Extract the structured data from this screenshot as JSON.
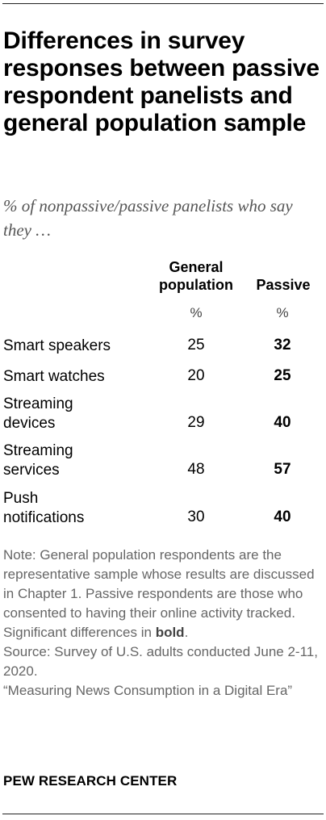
{
  "title": "Differences in survey responses between passive respondent panelists and general population sample",
  "subtitle": "% of nonpassive/passive panelists who say they …",
  "columns": [
    {
      "header_line1": "General",
      "header_line2": "population",
      "unit": "%"
    },
    {
      "header_line1": "",
      "header_line2": "Passive",
      "unit": "%"
    }
  ],
  "chart_data": {
    "type": "table",
    "title": "Differences in survey responses between passive respondent panelists and general population sample",
    "subtitle": "% of nonpassive/passive panelists who say they …",
    "columns": [
      "General population",
      "Passive"
    ],
    "rows": [
      {
        "label_lines": [
          "Smart speakers"
        ],
        "values": [
          "25",
          "32"
        ],
        "bold": [
          false,
          true
        ]
      },
      {
        "label_lines": [
          "Smart watches"
        ],
        "values": [
          "20",
          "25"
        ],
        "bold": [
          false,
          true
        ]
      },
      {
        "label_lines": [
          "Streaming",
          "devices"
        ],
        "values": [
          "29",
          "40"
        ],
        "bold": [
          false,
          true
        ]
      },
      {
        "label_lines": [
          "Streaming",
          "services"
        ],
        "values": [
          "48",
          "57"
        ],
        "bold": [
          false,
          true
        ]
      },
      {
        "label_lines": [
          "Push",
          "notifications"
        ],
        "values": [
          "30",
          "40"
        ],
        "bold": [
          false,
          true
        ]
      }
    ]
  },
  "note": {
    "text_before_bold": "Note: General population respondents are the representative sample whose results are discussed in Chapter 1. Passive respondents are those who consented to having their online activity tracked. Significant differences in ",
    "bold_word": "bold",
    "text_after_bold": ".",
    "source": "Source: Survey of U.S. adults conducted June 2-11, 2020.",
    "report": "“Measuring News Consumption in a Digital Era”"
  },
  "footer": {
    "logo": "PEW RESEARCH CENTER"
  }
}
